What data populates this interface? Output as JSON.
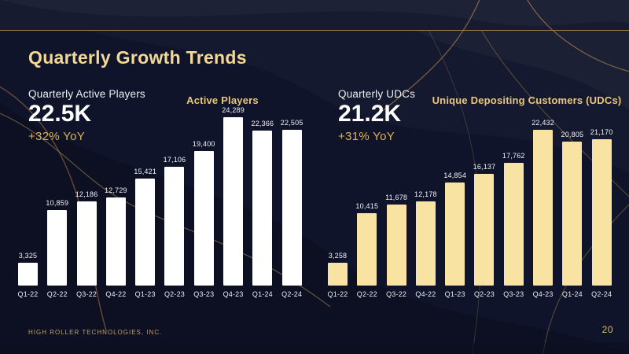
{
  "slide": {
    "title": "Quarterly Growth Trends",
    "footer": "HIGH ROLLER TECHNOLOGIES, INC.",
    "page_number": "20"
  },
  "stats": {
    "left": {
      "label": "Quarterly Active Players",
      "value": "22.5K",
      "delta": "+32% YoY"
    },
    "right": {
      "label": "Quarterly UDCs",
      "value": "21.2K",
      "delta": "+31% YoY"
    }
  },
  "chart_data": [
    {
      "type": "bar",
      "title": "Active Players",
      "categories": [
        "Q1-22",
        "Q2-22",
        "Q3-22",
        "Q4-22",
        "Q1-23",
        "Q2-23",
        "Q3-23",
        "Q4-23",
        "Q1-24",
        "Q2-24"
      ],
      "values": [
        3325,
        10859,
        12186,
        12729,
        15421,
        17106,
        19400,
        24289,
        22366,
        22505
      ],
      "bar_color": "#ffffff",
      "ylim": [
        0,
        24289
      ],
      "grid": false,
      "legend": "none",
      "value_labels_shown": true
    },
    {
      "type": "bar",
      "title": "Unique Depositing Customers (UDCs)",
      "categories": [
        "Q1-22",
        "Q2-22",
        "Q3-22",
        "Q4-22",
        "Q1-23",
        "Q2-23",
        "Q3-23",
        "Q4-23",
        "Q1-24",
        "Q2-24"
      ],
      "values": [
        3258,
        10415,
        11678,
        12178,
        14854,
        16137,
        17762,
        22432,
        20805,
        21170
      ],
      "bar_color": "#f8e3a3",
      "ylim": [
        0,
        24289
      ],
      "grid": false,
      "legend": "none",
      "value_labels_shown": true
    }
  ],
  "colors": {
    "background": "#10142a",
    "top_band": "#171b30",
    "divider_gold": "#a8854e",
    "title_gold": "#f3d998",
    "accent_gold": "#d9b254",
    "bar_white": "#ffffff",
    "bar_gold": "#f8e3a3",
    "footer_gold": "#bfa06a"
  }
}
